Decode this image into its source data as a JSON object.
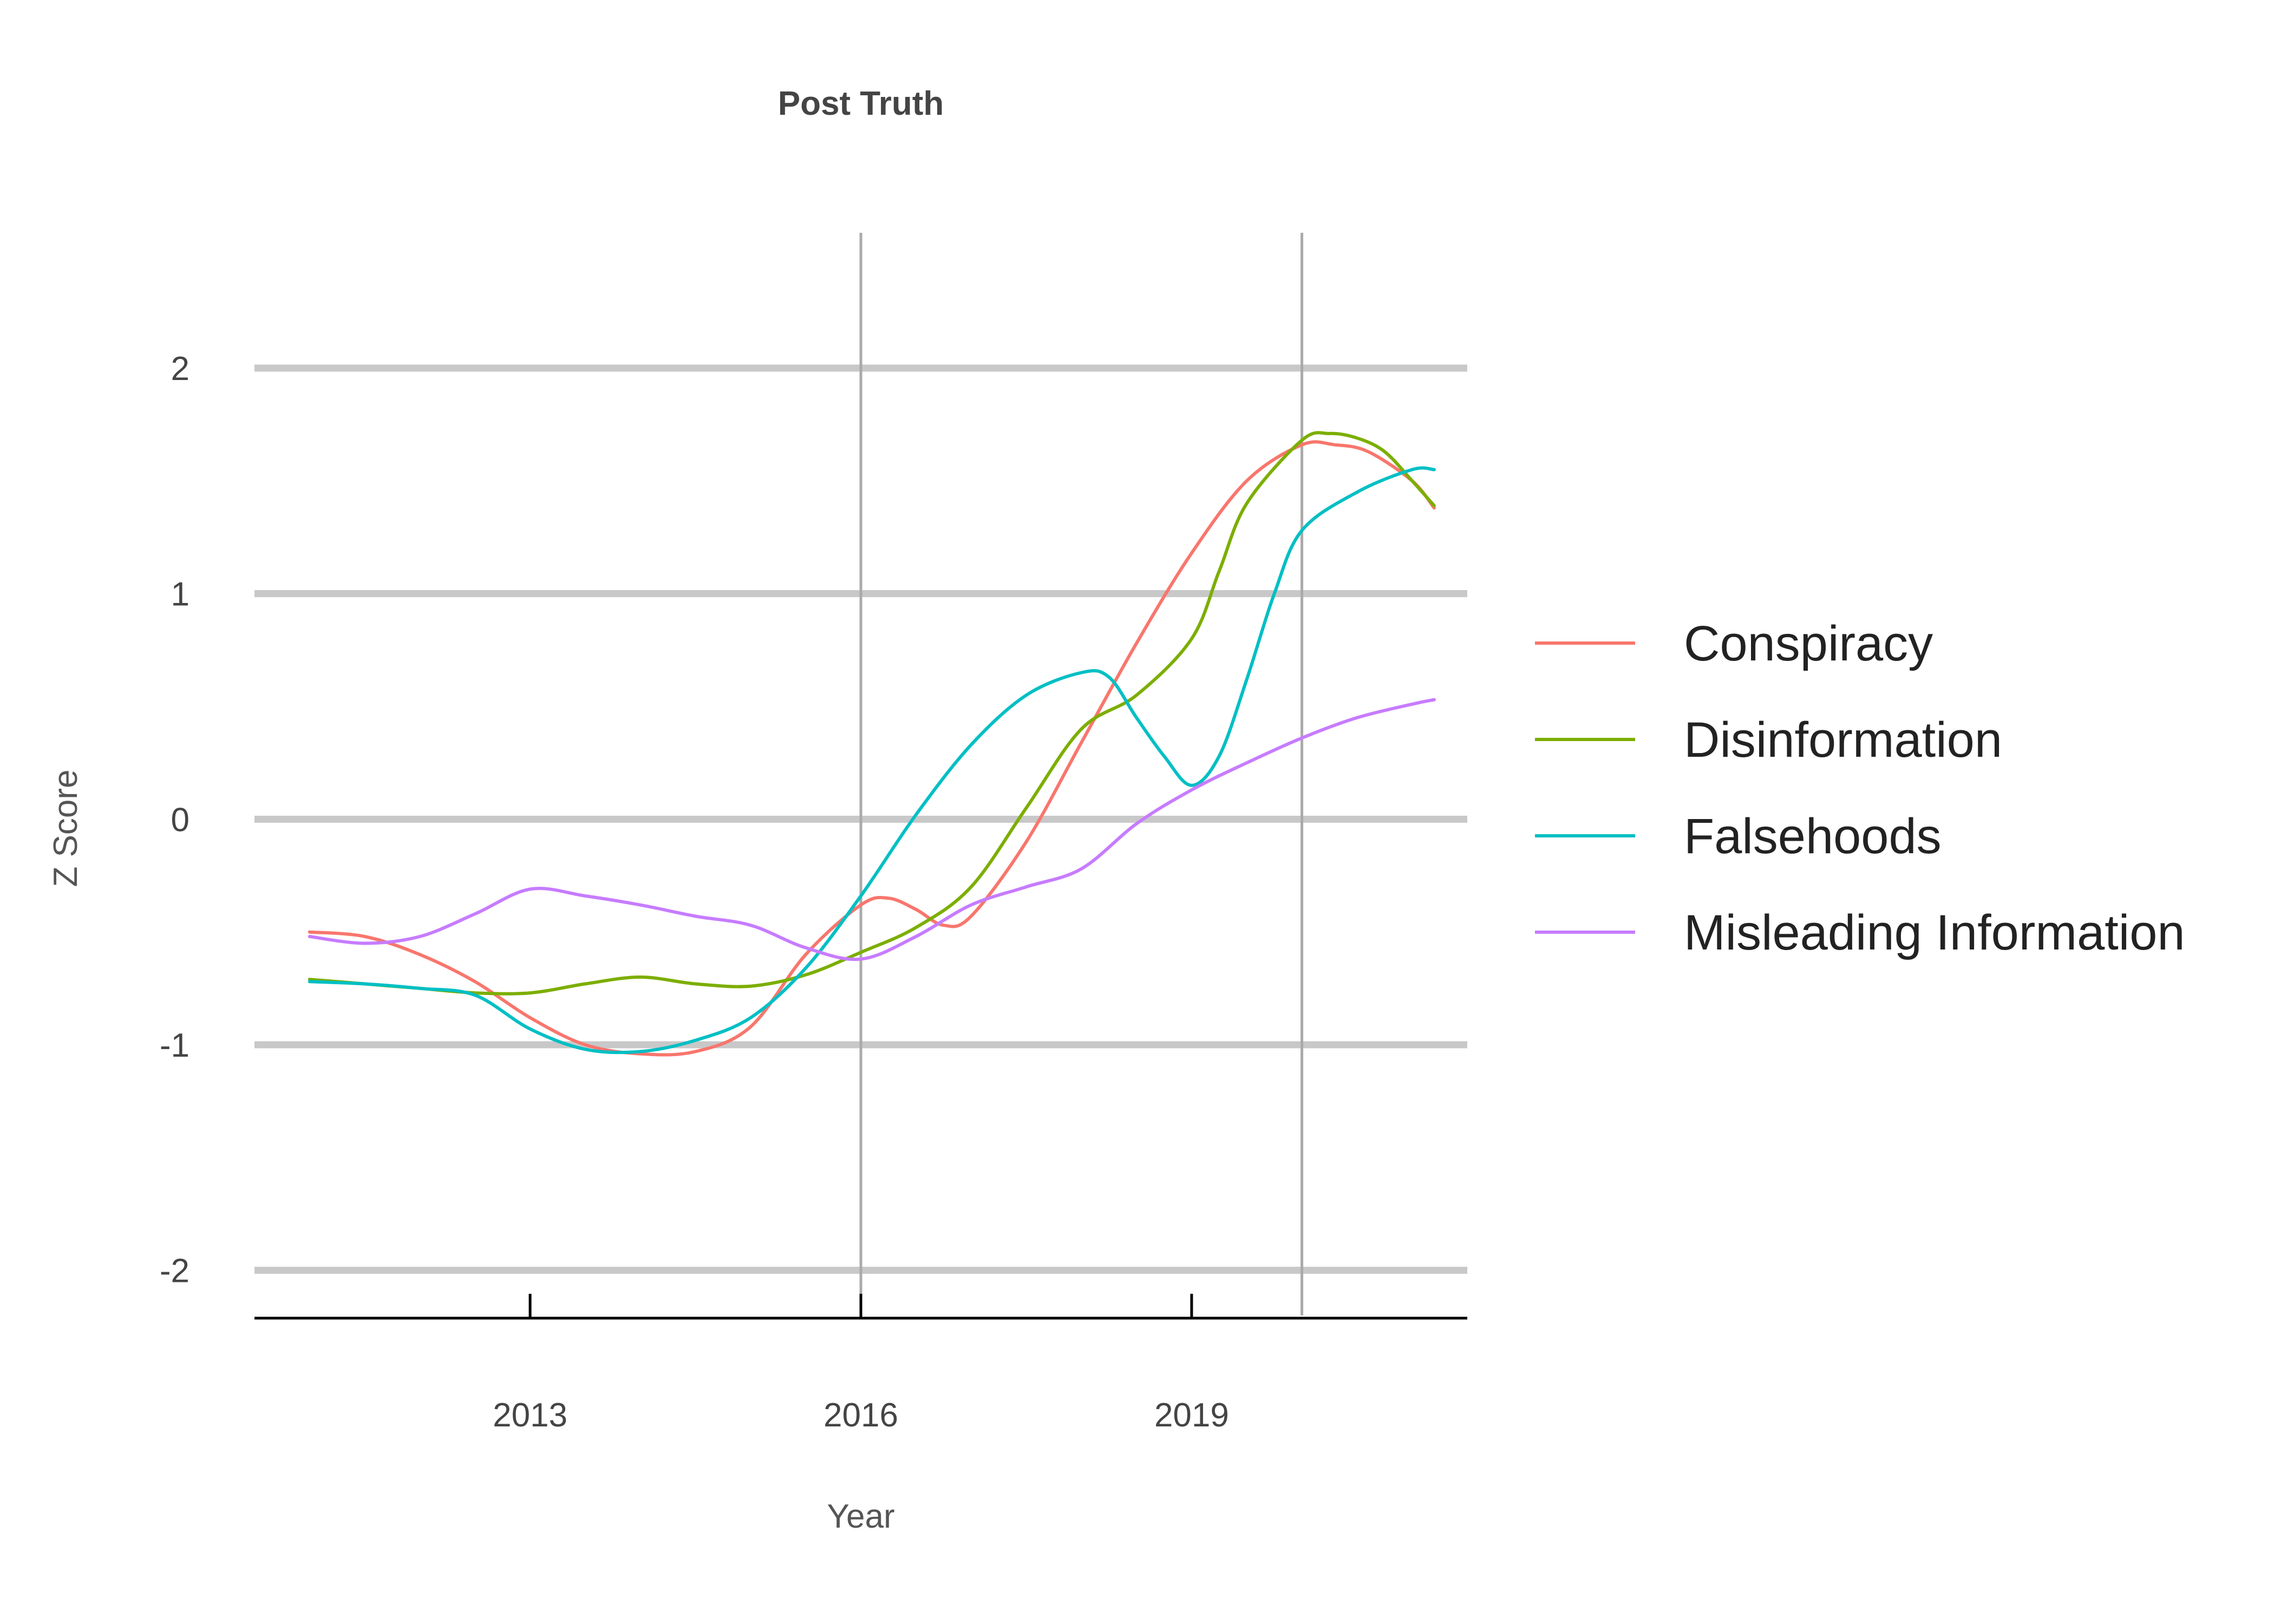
{
  "chart_data": {
    "type": "line",
    "title": "Post Truth",
    "xlabel": "Year",
    "ylabel": "Z Score",
    "xlim": [
      2010.5,
      2021.5
    ],
    "ylim": [
      -2.2,
      2.6
    ],
    "x_ticks": [
      2013,
      2016,
      2019
    ],
    "x_tick_labels": [
      "2013",
      "2016",
      "2019"
    ],
    "y_ticks": [
      -2,
      -1,
      0,
      1,
      2
    ],
    "y_tick_labels": [
      "-2",
      "-1",
      "0",
      "1",
      "2"
    ],
    "grid": true,
    "vlines": [
      2016,
      2020
    ],
    "legend_position": "right",
    "series": [
      {
        "name": "Conspiracy",
        "color": "#F8766D",
        "x": [
          2011,
          2011.5,
          2012,
          2012.5,
          2013,
          2013.5,
          2014,
          2014.5,
          2015,
          2015.5,
          2016,
          2016.25,
          2016.5,
          2016.75,
          2017,
          2017.5,
          2018,
          2018.5,
          2019,
          2019.5,
          2020,
          2020.3,
          2020.6,
          2021,
          2021.2
        ],
        "y": [
          -0.5,
          -0.52,
          -0.6,
          -0.72,
          -0.88,
          -1.0,
          -1.04,
          -1.03,
          -0.92,
          -0.6,
          -0.38,
          -0.35,
          -0.4,
          -0.47,
          -0.43,
          -0.1,
          0.34,
          0.78,
          1.18,
          1.5,
          1.66,
          1.66,
          1.63,
          1.5,
          1.38
        ]
      },
      {
        "name": "Disinformation",
        "color": "#7CAE00",
        "x": [
          2011,
          2011.5,
          2012,
          2012.5,
          2013,
          2013.5,
          2014,
          2014.5,
          2015,
          2015.5,
          2016,
          2016.5,
          2017,
          2017.5,
          2018,
          2018.5,
          2019,
          2019.25,
          2019.5,
          2020,
          2020.25,
          2020.5,
          2020.75,
          2021,
          2021.2
        ],
        "y": [
          -0.71,
          -0.73,
          -0.75,
          -0.77,
          -0.77,
          -0.73,
          -0.7,
          -0.73,
          -0.74,
          -0.69,
          -0.59,
          -0.48,
          -0.3,
          0.05,
          0.4,
          0.55,
          0.8,
          1.1,
          1.4,
          1.68,
          1.71,
          1.69,
          1.63,
          1.5,
          1.39
        ]
      },
      {
        "name": "Falsehoods",
        "color": "#00BFC4",
        "x": [
          2011,
          2011.5,
          2012,
          2012.5,
          2013,
          2013.5,
          2014,
          2014.5,
          2015,
          2015.5,
          2016,
          2016.5,
          2017,
          2017.5,
          2018,
          2018.25,
          2018.5,
          2018.75,
          2019,
          2019.25,
          2019.5,
          2019.75,
          2020,
          2020.5,
          2021,
          2021.2
        ],
        "y": [
          -0.72,
          -0.73,
          -0.75,
          -0.78,
          -0.93,
          -1.02,
          -1.03,
          -0.98,
          -0.88,
          -0.66,
          -0.34,
          0.02,
          0.33,
          0.55,
          0.65,
          0.63,
          0.45,
          0.28,
          0.15,
          0.28,
          0.62,
          1.0,
          1.28,
          1.45,
          1.55,
          1.55
        ]
      },
      {
        "name": "Misleading Information",
        "color": "#C77CFF",
        "x": [
          2011,
          2011.5,
          2012,
          2012.5,
          2013,
          2013.5,
          2014,
          2014.5,
          2015,
          2015.5,
          2016,
          2016.5,
          2017,
          2017.5,
          2018,
          2018.5,
          2019,
          2019.5,
          2020,
          2020.5,
          2021,
          2021.2
        ],
        "y": [
          -0.52,
          -0.55,
          -0.52,
          -0.42,
          -0.31,
          -0.34,
          -0.38,
          -0.43,
          -0.47,
          -0.57,
          -0.62,
          -0.52,
          -0.38,
          -0.3,
          -0.22,
          -0.02,
          0.13,
          0.25,
          0.36,
          0.45,
          0.51,
          0.53
        ]
      }
    ]
  }
}
